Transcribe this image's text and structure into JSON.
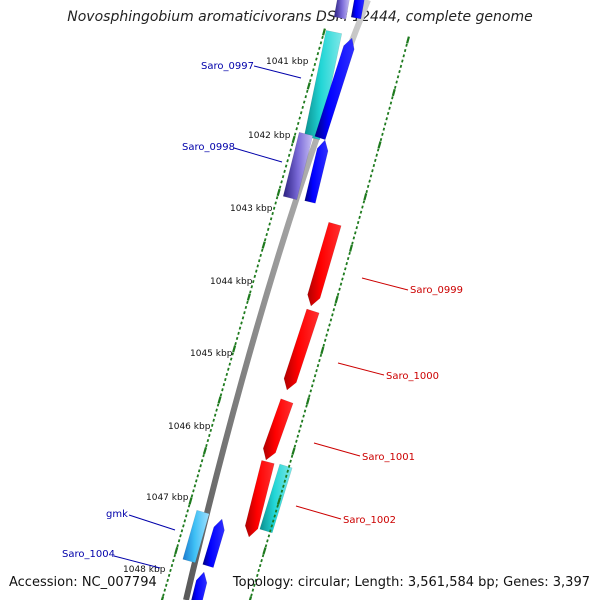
{
  "title": "Novosphingobium aromaticivorans DSM 12444, complete genome",
  "footer": {
    "accession": "Accession: NC_007794",
    "summary": "Topology: circular; Length: 3,561,584 bp; Genes: 3,397"
  },
  "colors": {
    "forward_cds": "#0000ff",
    "reverse_cds": "#ff0000",
    "gene_cyan": "#1fc7c7",
    "gene_lightblue": "#3fb0f0",
    "purple": "#6a5acd",
    "backbone": "#808080",
    "tick_green": "#1e7a1e",
    "label_blue": "#0000aa",
    "label_red": "#cc0000"
  },
  "kbp_labels": [
    "1041 kbp",
    "1042 kbp",
    "1043 kbp",
    "1044 kbp",
    "1045 kbp",
    "1046 kbp",
    "1047 kbp",
    "1048 kbp"
  ],
  "genes_left": [
    "Saro_0997",
    "Saro_0998",
    "gmk",
    "Saro_1004"
  ],
  "genes_right": [
    "Saro_0999",
    "Saro_1000",
    "Saro_1001",
    "Saro_1002"
  ]
}
